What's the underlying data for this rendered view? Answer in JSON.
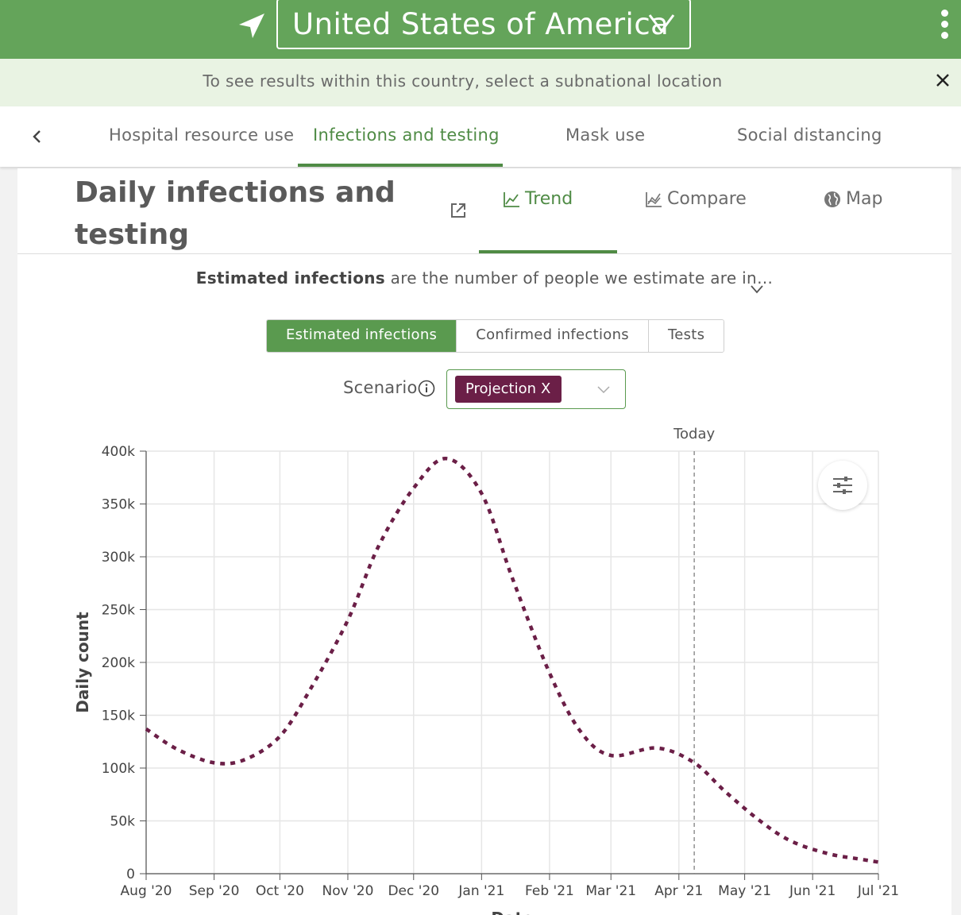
{
  "header": {
    "country": "United States of America",
    "notice": "To see results within this country, select a subnational location",
    "colors": {
      "brand_green": "#64a45a",
      "accent_green": "#4f8b45",
      "notice_bg": "#e9f3e3"
    }
  },
  "category_tabs": [
    {
      "label": "Hospital resource use",
      "active": false
    },
    {
      "label": "Infections and testing",
      "active": true
    },
    {
      "label": "Mask use",
      "active": false
    },
    {
      "label": "Social distancing",
      "active": false
    }
  ],
  "card": {
    "title_line1": "Daily infections and",
    "title_line2": "testing",
    "view_tabs": [
      {
        "label": "Trend",
        "icon": "line-chart-icon",
        "active": true
      },
      {
        "label": "Compare",
        "icon": "compare-chart-icon",
        "active": false
      },
      {
        "label": "Map",
        "icon": "globe-icon",
        "active": false
      }
    ],
    "description_bold": "Estimated infections",
    "description_rest": " are the number of people we estimate are in…",
    "metric_buttons": [
      {
        "label": "Estimated infections",
        "active": true
      },
      {
        "label": "Confirmed infections",
        "active": false
      },
      {
        "label": "Tests",
        "active": false
      }
    ],
    "scenario_label": "Scenario",
    "scenario_chip": "Projection",
    "scenario_chip_close": "X",
    "scenario_color": "#6b1f47"
  },
  "chart_data": {
    "type": "line",
    "ylabel": "Daily count",
    "xlabel": "Date",
    "ylim": [
      0,
      400000
    ],
    "y_ticks": [
      "0",
      "50k",
      "100k",
      "150k",
      "200k",
      "250k",
      "300k",
      "350k",
      "400k"
    ],
    "x_ticks": [
      "Aug '20",
      "Sep '20",
      "Oct '20",
      "Nov '20",
      "Dec '20",
      "Jan '21",
      "Feb '21",
      "Mar '21",
      "Apr '21",
      "May '21",
      "Jun '21",
      "Jul '21"
    ],
    "today_label": "Today",
    "today_date": "2021-04-08",
    "grid": true,
    "series": [
      {
        "name": "Projection",
        "color": "#6b1f47",
        "style": "dotted",
        "points": [
          [
            "2020-08-01",
            137000
          ],
          [
            "2020-08-15",
            118000
          ],
          [
            "2020-09-01",
            105000
          ],
          [
            "2020-09-15",
            108000
          ],
          [
            "2020-10-01",
            130000
          ],
          [
            "2020-10-15",
            175000
          ],
          [
            "2020-11-01",
            240000
          ],
          [
            "2020-11-15",
            310000
          ],
          [
            "2020-12-01",
            365000
          ],
          [
            "2020-12-16",
            393000
          ],
          [
            "2021-01-01",
            360000
          ],
          [
            "2021-01-15",
            280000
          ],
          [
            "2021-02-01",
            190000
          ],
          [
            "2021-02-15",
            135000
          ],
          [
            "2021-03-01",
            112000
          ],
          [
            "2021-03-22",
            119000
          ],
          [
            "2021-04-08",
            105000
          ],
          [
            "2021-04-22",
            78000
          ],
          [
            "2021-05-08",
            50000
          ],
          [
            "2021-05-22",
            31000
          ],
          [
            "2021-06-08",
            19000
          ],
          [
            "2021-06-22",
            14000
          ],
          [
            "2021-07-01",
            11000
          ]
        ]
      }
    ]
  }
}
